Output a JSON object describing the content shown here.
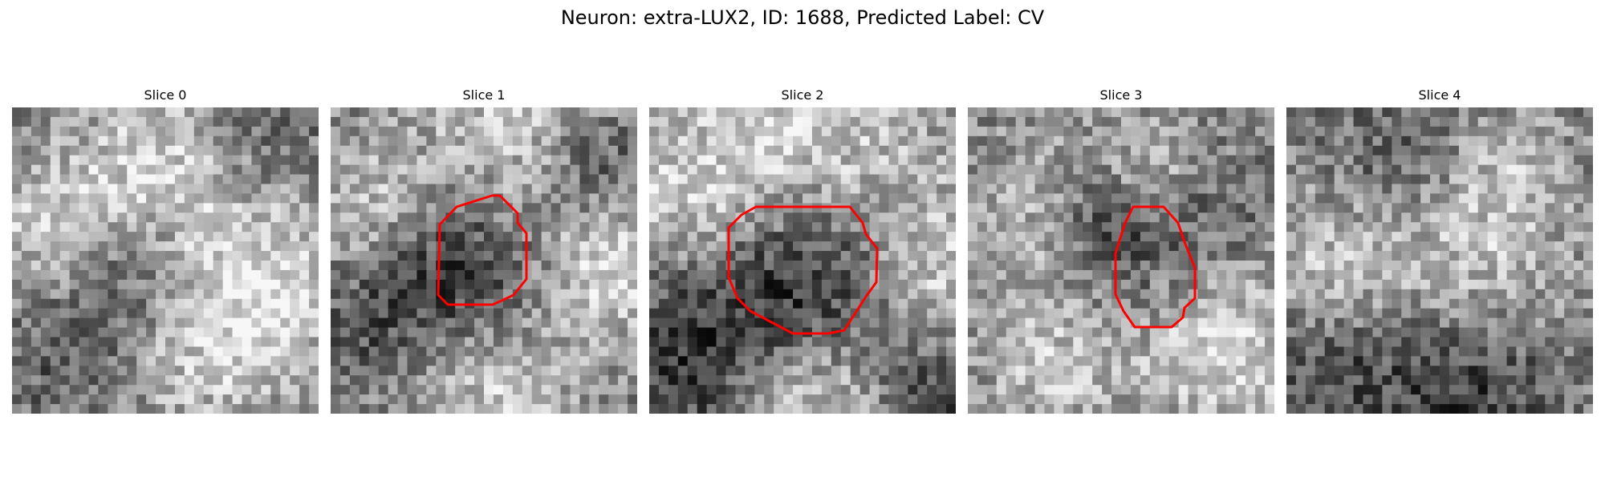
{
  "figure": {
    "title": "Neuron: extra-LUX2, ID: 1688, Predicted Label: CV"
  },
  "contour_color": "#ff0000",
  "slices": [
    {
      "title": "Slice 0",
      "has_contour": false
    },
    {
      "title": "Slice 1",
      "has_contour": true
    },
    {
      "title": "Slice 2",
      "has_contour": true
    },
    {
      "title": "Slice 3",
      "has_contour": true
    },
    {
      "title": "Slice 4",
      "has_contour": false
    }
  ]
}
